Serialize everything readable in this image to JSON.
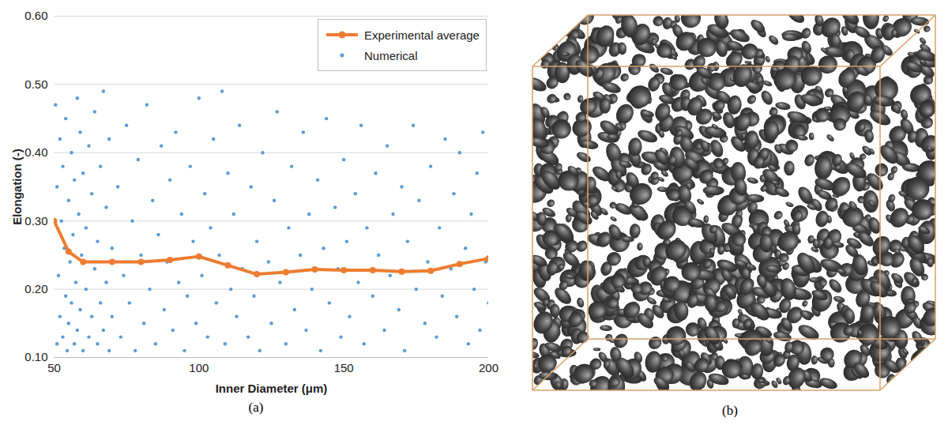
{
  "chart_data": {
    "type": "scatter",
    "x_label": "Inner Diameter (μm)",
    "y_label": "Elongation (-)",
    "xlim": [
      50,
      200
    ],
    "xticks": [
      50,
      100,
      150,
      200
    ],
    "ylim": [
      0.1,
      0.6
    ],
    "yticks": [
      0.1,
      0.2,
      0.3,
      0.4,
      0.5,
      0.6
    ],
    "grid": true,
    "legend": "top-right",
    "series": [
      {
        "name": "Numerical",
        "type": "scatter",
        "color": "#5B9BD5",
        "marker": "circle",
        "x": [
          50.5,
          51,
          51,
          51.5,
          52,
          52,
          52.5,
          53,
          53,
          53.5,
          54,
          54,
          54.5,
          55,
          55,
          55.5,
          56,
          56,
          56.5,
          57,
          57,
          57.5,
          58,
          58,
          58.5,
          59,
          59,
          59.5,
          60,
          60,
          61,
          61,
          62,
          62,
          63,
          63,
          64,
          64,
          65,
          65,
          66,
          66,
          67,
          67,
          68,
          68,
          69,
          69,
          70,
          70,
          72,
          73,
          74,
          75,
          76,
          77,
          78,
          79,
          80,
          81,
          82,
          83,
          84,
          85,
          86,
          87,
          88,
          89,
          90,
          91,
          92,
          93,
          94,
          95,
          96,
          97,
          98,
          99,
          100,
          101,
          102,
          103,
          104,
          105,
          106,
          107,
          108,
          109,
          110,
          111,
          112,
          113,
          114,
          115,
          117,
          118,
          119,
          120,
          121,
          122,
          124,
          125,
          126,
          127,
          128,
          130,
          131,
          132,
          133,
          135,
          136,
          137,
          138,
          139,
          141,
          142,
          143,
          144,
          145,
          147,
          148,
          149,
          150,
          151,
          152,
          154,
          155,
          156,
          157,
          158,
          160,
          161,
          162,
          164,
          165,
          166,
          167,
          169,
          170,
          171,
          172,
          174,
          175,
          176,
          178,
          179,
          180,
          182,
          183,
          184,
          185,
          187,
          188,
          189,
          190,
          192,
          193,
          194,
          195,
          196,
          197,
          198,
          199,
          200
        ],
        "values": [
          0.47,
          0.35,
          0.12,
          0.22,
          0.42,
          0.16,
          0.3,
          0.13,
          0.38,
          0.26,
          0.19,
          0.45,
          0.11,
          0.33,
          0.15,
          0.24,
          0.4,
          0.18,
          0.28,
          0.12,
          0.36,
          0.21,
          0.48,
          0.14,
          0.31,
          0.17,
          0.43,
          0.25,
          0.11,
          0.37,
          0.2,
          0.29,
          0.13,
          0.41,
          0.16,
          0.34,
          0.23,
          0.46,
          0.12,
          0.27,
          0.38,
          0.18,
          0.49,
          0.14,
          0.32,
          0.21,
          0.11,
          0.42,
          0.26,
          0.16,
          0.35,
          0.13,
          0.22,
          0.44,
          0.18,
          0.3,
          0.11,
          0.39,
          0.25,
          0.15,
          0.47,
          0.2,
          0.33,
          0.12,
          0.28,
          0.41,
          0.17,
          0.24,
          0.36,
          0.14,
          0.43,
          0.21,
          0.31,
          0.11,
          0.19,
          0.38,
          0.27,
          0.15,
          0.48,
          0.22,
          0.34,
          0.13,
          0.29,
          0.42,
          0.18,
          0.25,
          0.49,
          0.12,
          0.37,
          0.2,
          0.31,
          0.16,
          0.44,
          0.23,
          0.13,
          0.35,
          0.19,
          0.27,
          0.11,
          0.4,
          0.24,
          0.15,
          0.33,
          0.46,
          0.21,
          0.12,
          0.29,
          0.38,
          0.17,
          0.25,
          0.43,
          0.14,
          0.31,
          0.2,
          0.36,
          0.11,
          0.26,
          0.45,
          0.18,
          0.32,
          0.23,
          0.13,
          0.39,
          0.27,
          0.16,
          0.34,
          0.21,
          0.44,
          0.12,
          0.29,
          0.19,
          0.37,
          0.25,
          0.14,
          0.41,
          0.22,
          0.31,
          0.17,
          0.35,
          0.11,
          0.27,
          0.44,
          0.2,
          0.33,
          0.15,
          0.24,
          0.38,
          0.13,
          0.29,
          0.19,
          0.42,
          0.23,
          0.34,
          0.16,
          0.4,
          0.26,
          0.12,
          0.31,
          0.2,
          0.37,
          0.14,
          0.43,
          0.24,
          0.18
        ]
      },
      {
        "name": "Experimental average",
        "type": "line",
        "color": "#ED7D31",
        "marker": "circle",
        "x": [
          50,
          55,
          60,
          70,
          80,
          90,
          100,
          110,
          120,
          130,
          140,
          150,
          160,
          170,
          180,
          190,
          200
        ],
        "values": [
          0.3,
          0.255,
          0.24,
          0.24,
          0.24,
          0.243,
          0.248,
          0.235,
          0.222,
          0.225,
          0.229,
          0.228,
          0.228,
          0.226,
          0.227,
          0.237,
          0.245
        ]
      }
    ]
  },
  "captions": [
    "(a)",
    "(b)"
  ]
}
